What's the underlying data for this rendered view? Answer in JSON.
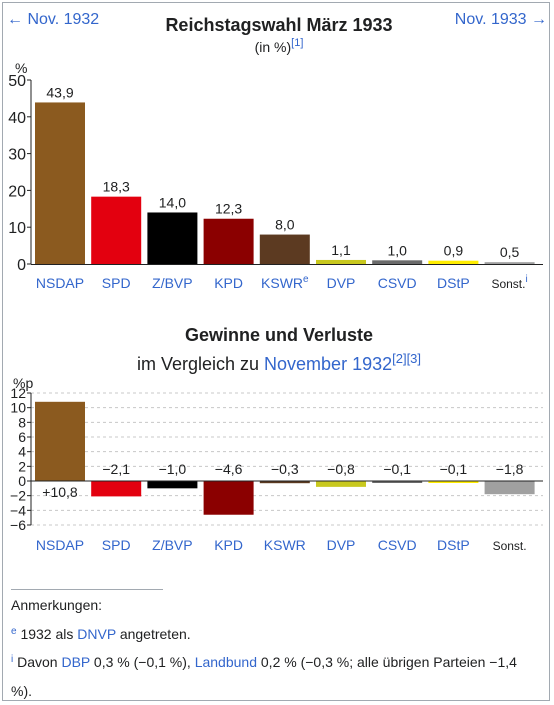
{
  "nav": {
    "prev": "← Nov. 1932",
    "next": "Nov. 1933 →"
  },
  "chart_data": [
    {
      "type": "bar",
      "title": "Reichstagswahl März 1933",
      "subtitle": "(in %)",
      "subtitle_ref": "[1]",
      "ylabel": "%",
      "ylim": [
        0,
        50
      ],
      "yticks": [
        0,
        10,
        20,
        30,
        40,
        50
      ],
      "grid": false,
      "categories": [
        "NSDAP",
        "SPD",
        "Z/BVP",
        "KPD",
        "KSWR",
        "DVP",
        "CSVD",
        "DStP",
        "Sonst."
      ],
      "category_sup": [
        "",
        "",
        "",
        "",
        "e",
        "",
        "",
        "",
        "i"
      ],
      "values": [
        43.9,
        18.3,
        14.0,
        12.3,
        8.0,
        1.1,
        1.0,
        0.9,
        0.5
      ],
      "labels": [
        "43,9",
        "18,3",
        "14,0",
        "12,3",
        "8,0",
        "1,1",
        "1,0",
        "0,9",
        "0,5"
      ],
      "colors": [
        "#8b5a1f",
        "#e3000f",
        "#000000",
        "#8b0000",
        "#5c3a21",
        "#c8c81e",
        "#6b6b6b",
        "#ffed00",
        "#a0a0a0"
      ]
    },
    {
      "type": "bar",
      "title": "Gewinne und Verluste",
      "subtitle_prefix": "im Vergleich zu ",
      "subtitle_link": "November 1932",
      "subtitle_ref": "[2][3]",
      "ylabel": "%p",
      "ylim": [
        -6,
        12
      ],
      "yticks": [
        -6,
        -4,
        -2,
        0,
        2,
        4,
        6,
        8,
        10,
        12
      ],
      "grid": true,
      "categories": [
        "NSDAP",
        "SPD",
        "Z/BVP",
        "KPD",
        "KSWR",
        "DVP",
        "CSVD",
        "DStP",
        "Sonst."
      ],
      "values": [
        10.8,
        -2.1,
        -1.0,
        -4.6,
        -0.3,
        -0.8,
        -0.1,
        -0.1,
        -1.8
      ],
      "labels": [
        "+10,8",
        "−2,1",
        "−1,0",
        "−4,6",
        "−0,3",
        "−0,8",
        "−0,1",
        "−0,1",
        "−1,8"
      ],
      "colors": [
        "#8b5a1f",
        "#e3000f",
        "#000000",
        "#8b0000",
        "#5c3a21",
        "#c8c81e",
        "#6b6b6b",
        "#ffed00",
        "#a0a0a0"
      ]
    }
  ],
  "notes": {
    "heading": "Anmerkungen:",
    "e_marker": "e",
    "e_text_1": "1932 als ",
    "e_link": "DNVP",
    "e_text_2": " angetreten.",
    "i_marker": "i",
    "i_text_1": "Davon ",
    "i_link_1": "DBP",
    "i_text_2": " 0,3 % (−0,1 %), ",
    "i_link_2": "Landbund",
    "i_text_3": " 0,2 % (−0,3 %; alle übrigen Parteien −1,4 %)."
  }
}
